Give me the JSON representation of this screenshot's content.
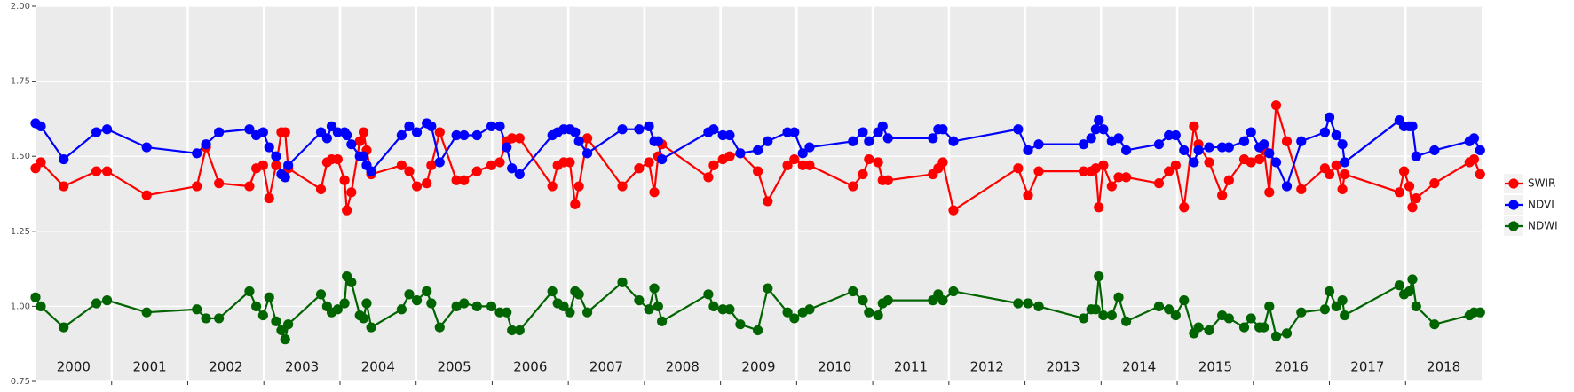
{
  "chart_data": {
    "type": "line",
    "x": [
      2000.0,
      2000.07,
      2000.37,
      2000.8,
      2000.94,
      2001.46,
      2002.12,
      2002.24,
      2002.41,
      2002.81,
      2002.9,
      2002.99,
      2003.07,
      2003.16,
      2003.23,
      2003.28,
      2003.32,
      2003.75,
      2003.83,
      2003.89,
      2003.97,
      2004.06,
      2004.09,
      2004.15,
      2004.26,
      2004.31,
      2004.35,
      2004.41,
      2004.81,
      2004.91,
      2005.01,
      2005.14,
      2005.2,
      2005.31,
      2005.53,
      2005.63,
      2005.8,
      2005.99,
      2006.1,
      2006.19,
      2006.26,
      2006.36,
      2006.79,
      2006.86,
      2006.94,
      2007.02,
      2007.09,
      2007.14,
      2007.25,
      2007.71,
      2007.93,
      2008.06,
      2008.13,
      2008.18,
      2008.23,
      2008.84,
      2008.91,
      2009.03,
      2009.12,
      2009.26,
      2009.49,
      2009.62,
      2009.88,
      2009.97,
      2010.08,
      2010.17,
      2010.74,
      2010.87,
      2010.95,
      2011.07,
      2011.13,
      2011.2,
      2011.79,
      2011.86,
      2011.92,
      2012.06,
      2012.91,
      2013.04,
      2013.18,
      2013.77,
      2013.87,
      2013.93,
      2013.97,
      2014.03,
      2014.14,
      2014.23,
      2014.33,
      2014.76,
      2014.89,
      2014.98,
      2015.09,
      2015.22,
      2015.28,
      2015.42,
      2015.59,
      2015.68,
      2015.88,
      2015.97,
      2016.08,
      2016.14,
      2016.21,
      2016.3,
      2016.44,
      2016.63,
      2016.94,
      2017.0,
      2017.09,
      2017.17,
      2017.2,
      2017.92,
      2017.98,
      2018.05,
      2018.09,
      2018.14,
      2018.38,
      2018.84,
      2018.9,
      2018.98
    ],
    "series": [
      {
        "name": "SWIR",
        "color": "#ff0000",
        "values": [
          1.46,
          1.48,
          1.4,
          1.45,
          1.45,
          1.37,
          1.4,
          1.53,
          1.41,
          1.4,
          1.46,
          1.47,
          1.36,
          1.47,
          1.58,
          1.58,
          1.46,
          1.39,
          1.48,
          1.49,
          1.49,
          1.42,
          1.32,
          1.38,
          1.55,
          1.58,
          1.52,
          1.44,
          1.47,
          1.45,
          1.4,
          1.41,
          1.47,
          1.58,
          1.42,
          1.42,
          1.45,
          1.47,
          1.48,
          1.55,
          1.56,
          1.56,
          1.4,
          1.47,
          1.48,
          1.48,
          1.34,
          1.4,
          1.56,
          1.4,
          1.46,
          1.48,
          1.38,
          1.5,
          1.54,
          1.43,
          1.47,
          1.49,
          1.5,
          1.51,
          1.45,
          1.35,
          1.47,
          1.49,
          1.47,
          1.47,
          1.4,
          1.44,
          1.49,
          1.48,
          1.42,
          1.42,
          1.44,
          1.46,
          1.48,
          1.32,
          1.46,
          1.37,
          1.45,
          1.45,
          1.45,
          1.46,
          1.33,
          1.47,
          1.4,
          1.43,
          1.43,
          1.41,
          1.45,
          1.47,
          1.33,
          1.6,
          1.54,
          1.48,
          1.37,
          1.42,
          1.49,
          1.48,
          1.49,
          1.52,
          1.38,
          1.67,
          1.55,
          1.39,
          1.46,
          1.44,
          1.47,
          1.39,
          1.44,
          1.38,
          1.45,
          1.4,
          1.33,
          1.36,
          1.41,
          1.48,
          1.49,
          1.44
        ]
      },
      {
        "name": "NDVI",
        "color": "#0000ff",
        "values": [
          1.61,
          1.6,
          1.49,
          1.58,
          1.59,
          1.53,
          1.51,
          1.54,
          1.58,
          1.59,
          1.57,
          1.58,
          1.53,
          1.5,
          1.44,
          1.43,
          1.47,
          1.58,
          1.56,
          1.6,
          1.58,
          1.58,
          1.57,
          1.54,
          1.5,
          1.5,
          1.47,
          1.45,
          1.57,
          1.6,
          1.58,
          1.61,
          1.6,
          1.48,
          1.57,
          1.57,
          1.57,
          1.6,
          1.6,
          1.53,
          1.46,
          1.44,
          1.57,
          1.58,
          1.59,
          1.59,
          1.58,
          1.55,
          1.51,
          1.59,
          1.59,
          1.6,
          1.55,
          1.55,
          1.49,
          1.58,
          1.59,
          1.57,
          1.57,
          1.51,
          1.52,
          1.55,
          1.58,
          1.58,
          1.51,
          1.53,
          1.55,
          1.58,
          1.55,
          1.58,
          1.6,
          1.56,
          1.56,
          1.59,
          1.59,
          1.55,
          1.59,
          1.52,
          1.54,
          1.54,
          1.56,
          1.59,
          1.62,
          1.59,
          1.55,
          1.56,
          1.52,
          1.54,
          1.57,
          1.57,
          1.52,
          1.48,
          1.52,
          1.53,
          1.53,
          1.53,
          1.55,
          1.58,
          1.53,
          1.54,
          1.51,
          1.48,
          1.4,
          1.55,
          1.58,
          1.63,
          1.57,
          1.54,
          1.48,
          1.62,
          1.6,
          1.6,
          1.6,
          1.5,
          1.52,
          1.55,
          1.56,
          1.52
        ]
      },
      {
        "name": "NDWI",
        "color": "#006400",
        "values": [
          1.03,
          1.0,
          0.93,
          1.01,
          1.02,
          0.98,
          0.99,
          0.96,
          0.96,
          1.05,
          1.0,
          0.97,
          1.03,
          0.95,
          0.92,
          0.89,
          0.94,
          1.04,
          1.0,
          0.98,
          0.99,
          1.01,
          1.1,
          1.08,
          0.97,
          0.96,
          1.01,
          0.93,
          0.99,
          1.04,
          1.02,
          1.05,
          1.01,
          0.93,
          1.0,
          1.01,
          1.0,
          1.0,
          0.98,
          0.98,
          0.92,
          0.92,
          1.05,
          1.01,
          1.0,
          0.98,
          1.05,
          1.04,
          0.98,
          1.08,
          1.02,
          0.99,
          1.06,
          1.0,
          0.95,
          1.04,
          1.0,
          0.99,
          0.99,
          0.94,
          0.92,
          1.06,
          0.98,
          0.96,
          0.98,
          0.99,
          1.05,
          1.02,
          0.98,
          0.97,
          1.01,
          1.02,
          1.02,
          1.04,
          1.02,
          1.05,
          1.01,
          1.01,
          1.0,
          0.96,
          0.99,
          0.99,
          1.1,
          0.97,
          0.97,
          1.03,
          0.95,
          1.0,
          0.99,
          0.97,
          1.02,
          0.91,
          0.93,
          0.92,
          0.97,
          0.96,
          0.93,
          0.96,
          0.93,
          0.93,
          1.0,
          0.9,
          0.91,
          0.98,
          0.99,
          1.05,
          1.0,
          1.02,
          0.97,
          1.07,
          1.04,
          1.05,
          1.09,
          1.0,
          0.94,
          0.97,
          0.98,
          0.98
        ]
      }
    ],
    "xlim": [
      2000,
      2019
    ],
    "xticks": [
      {
        "value": 2000.5,
        "label": "2000"
      },
      {
        "value": 2001.5,
        "label": "2001"
      },
      {
        "value": 2002.5,
        "label": "2002"
      },
      {
        "value": 2003.5,
        "label": "2003"
      },
      {
        "value": 2004.5,
        "label": "2004"
      },
      {
        "value": 2005.5,
        "label": "2005"
      },
      {
        "value": 2006.5,
        "label": "2006"
      },
      {
        "value": 2007.5,
        "label": "2007"
      },
      {
        "value": 2008.5,
        "label": "2008"
      },
      {
        "value": 2009.5,
        "label": "2009"
      },
      {
        "value": 2010.5,
        "label": "2010"
      },
      {
        "value": 2011.5,
        "label": "2011"
      },
      {
        "value": 2012.5,
        "label": "2012"
      },
      {
        "value": 2013.5,
        "label": "2013"
      },
      {
        "value": 2014.5,
        "label": "2014"
      },
      {
        "value": 2015.5,
        "label": "2015"
      },
      {
        "value": 2016.5,
        "label": "2016"
      },
      {
        "value": 2017.5,
        "label": "2017"
      },
      {
        "value": 2018.5,
        "label": "2018"
      }
    ],
    "xgrid": [
      2001,
      2002,
      2003,
      2004,
      2005,
      2006,
      2007,
      2008,
      2009,
      2010,
      2011,
      2012,
      2013,
      2014,
      2015,
      2016,
      2017,
      2018
    ],
    "ylim": [
      0.75,
      2.0
    ],
    "yticks": [
      0.75,
      {
        "value": 1.0,
        "label": "1.00"
      },
      1.25,
      {
        "value": 1.5,
        "label": "1.50"
      },
      1.75,
      {
        "value": 2.0,
        "label": "2.00"
      }
    ],
    "grid": true,
    "legend": "right"
  }
}
